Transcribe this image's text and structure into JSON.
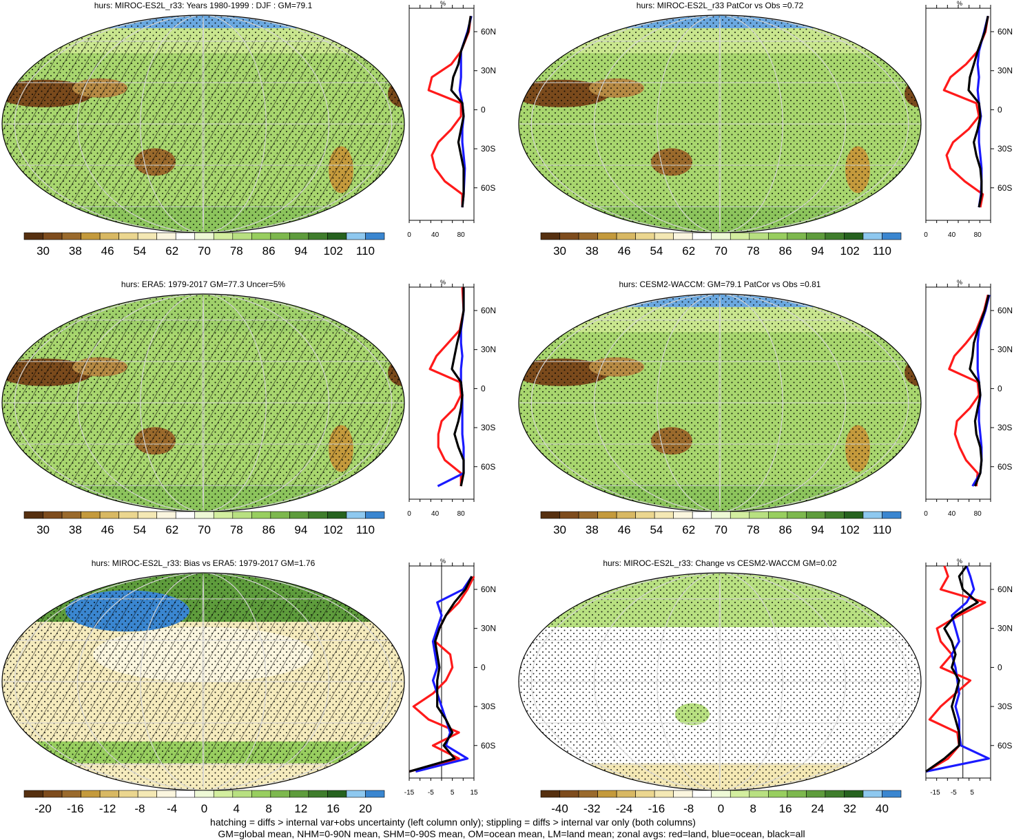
{
  "colors": {
    "palette": [
      "#563010",
      "#7e4c1d",
      "#9a6a2c",
      "#c49a3c",
      "#d8b863",
      "#ebd68f",
      "#f4e8b4",
      "#fbf6df",
      "#ffffff",
      "#eef9d6",
      "#d3ee9f",
      "#b8e081",
      "#98ce5f",
      "#7db84e",
      "#5e9c3c",
      "#3f7d2c",
      "#26621f",
      "#8ec8ef",
      "#3a86d0"
    ],
    "land": "#ff1a1a",
    "ocean": "#1a1aff",
    "all": "#000000"
  },
  "footer": {
    "line1": "hatching = diffs > internal var+obs uncertainty (left column only); stippling = diffs > internal var only (both columns)",
    "line2": "GM=global mean, NHM=0-90N mean, SHM=0-90S mean, OM=ocean mean, LM=land mean; zonal avgs: red=land, blue=ocean, black=all"
  },
  "chart_data": [
    {
      "type": "heatmap",
      "title": "hurs: MIROC-ES2L_r33: Years 1980-1999 : DJF : GM=79.1",
      "colorbar_labels": [
        "30",
        "38",
        "46",
        "54",
        "62",
        "70",
        "78",
        "86",
        "94",
        "102",
        "110"
      ],
      "lat_ticks": [
        "60N",
        "30N",
        "0",
        "30S",
        "60S"
      ],
      "profile": {
        "unit": "%",
        "xticks": [
          "0",
          "40",
          "80"
        ],
        "xlim": [
          0,
          100
        ],
        "lat": [
          72,
          60,
          45,
          35,
          25,
          15,
          5,
          -5,
          -15,
          -25,
          -35,
          -45,
          -55,
          -65,
          -75
        ],
        "land": [
          95,
          92,
          80,
          65,
          35,
          30,
          80,
          80,
          65,
          45,
          35,
          40,
          55,
          82,
          82
        ],
        "ocean": [
          96,
          90,
          80,
          80,
          80,
          78,
          82,
          84,
          82,
          82,
          84,
          86,
          85,
          84,
          82
        ],
        "all": [
          95,
          91,
          80,
          76,
          68,
          65,
          82,
          84,
          80,
          76,
          80,
          84,
          84,
          84,
          82
        ]
      }
    },
    {
      "type": "heatmap",
      "title": "hurs: MIROC-ES2L_r33 PatCor vs Obs =0.72",
      "colorbar_labels": [
        "30",
        "38",
        "46",
        "54",
        "62",
        "70",
        "78",
        "86",
        "94",
        "102",
        "110"
      ],
      "lat_ticks": [
        "60N",
        "30N",
        "0",
        "30S",
        "60S"
      ],
      "profile": {
        "unit": "%",
        "xticks": [
          "0",
          "40",
          "80"
        ],
        "xlim": [
          0,
          100
        ],
        "lat": [
          72,
          60,
          45,
          35,
          25,
          15,
          5,
          -5,
          -15,
          -25,
          -35,
          -45,
          -55,
          -65,
          -75
        ],
        "land": [
          96,
          92,
          80,
          62,
          38,
          28,
          78,
          82,
          66,
          42,
          32,
          38,
          60,
          88,
          84
        ],
        "ocean": [
          96,
          90,
          82,
          80,
          82,
          80,
          82,
          85,
          82,
          82,
          84,
          86,
          86,
          85,
          82
        ],
        "all": [
          96,
          91,
          80,
          74,
          68,
          66,
          82,
          84,
          80,
          74,
          78,
          84,
          86,
          86,
          82
        ]
      }
    },
    {
      "type": "heatmap",
      "title": "hurs: ERA5: 1979-2017 GM=77.3 Uncer=5%",
      "colorbar_labels": [
        "30",
        "38",
        "46",
        "54",
        "62",
        "70",
        "78",
        "86",
        "94",
        "102",
        "110"
      ],
      "lat_ticks": [
        "60N",
        "30N",
        "0",
        "30S",
        "60S"
      ],
      "profile": {
        "unit": "%",
        "xticks": [
          "0",
          "40",
          "80"
        ],
        "xlim": [
          0,
          100
        ],
        "lat": [
          78,
          60,
          45,
          35,
          25,
          15,
          5,
          -5,
          -15,
          -25,
          -35,
          -45,
          -55,
          -65,
          -75
        ],
        "land": [
          82,
          84,
          78,
          60,
          42,
          32,
          78,
          80,
          70,
          50,
          45,
          45,
          55,
          80,
          80
        ],
        "ocean": [
          84,
          84,
          80,
          80,
          82,
          80,
          80,
          82,
          82,
          82,
          82,
          84,
          84,
          84,
          44
        ],
        "all": [
          84,
          84,
          79,
          74,
          70,
          66,
          80,
          82,
          80,
          76,
          70,
          76,
          84,
          84,
          80
        ]
      }
    },
    {
      "type": "heatmap",
      "title": "hurs: CESM2-WACCM: GM=79.1 PatCor vs Obs =0.81",
      "colorbar_labels": [
        "30",
        "38",
        "46",
        "54",
        "62",
        "70",
        "78",
        "86",
        "94",
        "102",
        "110"
      ],
      "lat_ticks": [
        "60N",
        "30N",
        "0",
        "30S",
        "60S"
      ],
      "profile": {
        "unit": "%",
        "xticks": [
          "0",
          "40",
          "80"
        ],
        "xlim": [
          0,
          100
        ],
        "lat": [
          72,
          60,
          45,
          35,
          25,
          15,
          5,
          -5,
          -15,
          -25,
          -35,
          -45,
          -55,
          -65,
          -75
        ],
        "land": [
          96,
          90,
          78,
          62,
          44,
          36,
          80,
          82,
          68,
          48,
          45,
          52,
          62,
          80,
          78
        ],
        "ocean": [
          98,
          92,
          82,
          80,
          80,
          80,
          82,
          84,
          82,
          82,
          84,
          86,
          86,
          84,
          72
        ],
        "all": [
          97,
          91,
          80,
          74,
          72,
          68,
          82,
          84,
          80,
          76,
          78,
          84,
          86,
          84,
          76
        ]
      }
    },
    {
      "type": "heatmap",
      "title": "hurs: MIROC-ES2L_r33: Bias vs ERA5: 1979-2017 GM=1.76",
      "colorbar_labels": [
        "-20",
        "-16",
        "-12",
        "-8",
        "-4",
        "0",
        "4",
        "8",
        "12",
        "16",
        "20"
      ],
      "lat_ticks": [
        "60N",
        "30N",
        "0",
        "30S",
        "60S"
      ],
      "profile": {
        "unit": "%",
        "xticks": [
          "-15",
          "-5",
          "5",
          "15"
        ],
        "xlim": [
          -15,
          15
        ],
        "zero_line": 0,
        "lat": [
          70,
          60,
          50,
          40,
          30,
          20,
          10,
          0,
          -10,
          -20,
          -30,
          -40,
          -50,
          -60,
          -70,
          -80
        ],
        "land": [
          15,
          12,
          8,
          2,
          -1,
          -3,
          4,
          5,
          2,
          -4,
          -13,
          -6,
          8,
          -4,
          8,
          -15
        ],
        "ocean": [
          14,
          10,
          -2,
          0,
          -2,
          -4,
          -3,
          -2,
          -4,
          -2,
          0,
          2,
          4,
          2,
          12,
          -12
        ],
        "all": [
          14,
          11,
          6,
          2,
          -1,
          -3,
          -2,
          -1,
          -2,
          -2,
          -2,
          2,
          5,
          1,
          6,
          -15
        ]
      }
    },
    {
      "type": "heatmap",
      "title": "hurs: MIROC-ES2L_r33: Change vs CESM2-WACCM GM=0.02",
      "colorbar_labels": [
        "-40",
        "-32",
        "-24",
        "-16",
        "-8",
        "0",
        "8",
        "16",
        "24",
        "32",
        "40"
      ],
      "lat_ticks": [
        "60N",
        "30N",
        "0",
        "30S",
        "60S"
      ],
      "profile": {
        "unit": "%",
        "xticks": [
          "-15",
          "-5",
          "5"
        ],
        "xlim": [
          -20,
          15
        ],
        "zero_line": 0,
        "lat": [
          78,
          70,
          60,
          50,
          40,
          30,
          20,
          10,
          0,
          -10,
          -20,
          -30,
          -40,
          -50,
          -60,
          -70,
          -80
        ],
        "land": [
          -10,
          -8,
          -12,
          12,
          -2,
          -14,
          -12,
          -6,
          -12,
          4,
          -4,
          -12,
          -18,
          -3,
          -2,
          -8,
          -20
        ],
        "ocean": [
          2,
          4,
          6,
          2,
          -6,
          -4,
          -2,
          -6,
          -4,
          -3,
          -2,
          -4,
          -2,
          -2,
          -1,
          14,
          -20
        ],
        "all": [
          2,
          -2,
          0,
          8,
          -4,
          -10,
          -6,
          -4,
          -6,
          -2,
          -4,
          -6,
          -4,
          -2,
          -2,
          -10,
          -20
        ]
      }
    }
  ]
}
